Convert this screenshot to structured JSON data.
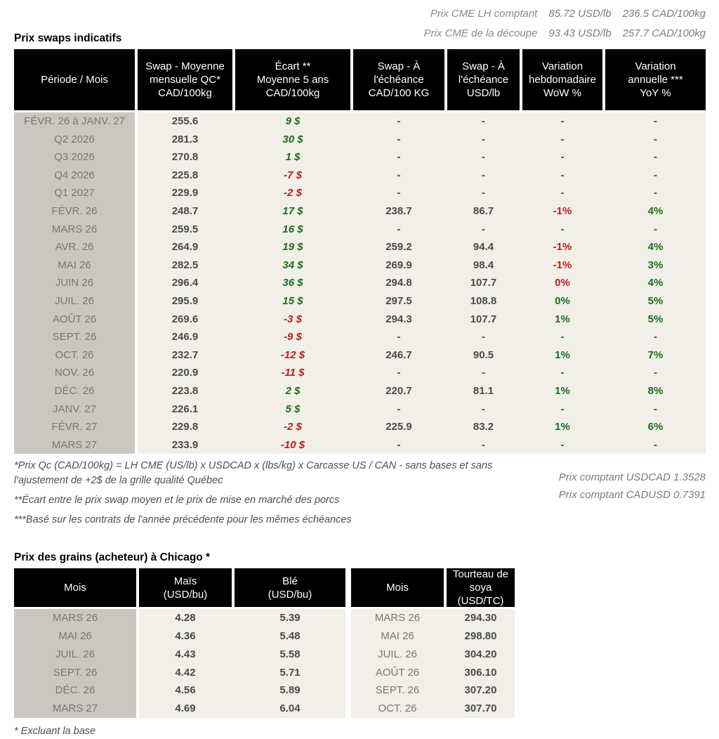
{
  "cme_header": {
    "lines": [
      {
        "label": "Prix CME LH comptant",
        "usd": "85.72 USD/lb",
        "cad": "236.5 CAD/100kg"
      },
      {
        "label": "Prix CME de la découpe",
        "usd": "93.43 USD/lb",
        "cad": "257.7 CAD/100kg"
      }
    ]
  },
  "colors": {
    "positive": "#1b6e1b",
    "negative": "#b5221c",
    "header_bg": "#000000",
    "body_bg": "#f1efe8",
    "period_bg": "#cac7c1"
  },
  "swaps_table": {
    "title": "Prix swaps indicatifs",
    "columns": [
      [
        "Période / Mois"
      ],
      [
        "Swap - Moyenne",
        "mensuelle QC*",
        "CAD/100kg"
      ],
      [
        "Écart **",
        "Moyenne 5 ans",
        "CAD/100kg"
      ],
      [
        "Swap - À",
        "l'échéance",
        "CAD/100 KG"
      ],
      [
        "Swap - À",
        "l'échéance",
        "USD/lb"
      ],
      [
        "Variation",
        "hebdomadaire",
        "WoW %"
      ],
      [
        "Variation",
        "annuelle ***",
        "YoY %"
      ]
    ],
    "rows": [
      [
        "FÉVR. 26 à  JANV. 27",
        [
          "255.6",
          "num"
        ],
        [
          "9 $",
          "pos"
        ],
        [
          "-",
          "num"
        ],
        [
          "-",
          "num"
        ],
        [
          "-",
          "num"
        ],
        [
          "-",
          "num"
        ]
      ],
      [
        "Q2 2026",
        [
          "281.3",
          "num"
        ],
        [
          "30 $",
          "pos"
        ],
        [
          "-",
          "num"
        ],
        [
          "-",
          "num"
        ],
        [
          "-",
          "num"
        ],
        [
          "-",
          "num"
        ]
      ],
      [
        "Q3 2026",
        [
          "270.8",
          "num"
        ],
        [
          "1 $",
          "pos"
        ],
        [
          "-",
          "num"
        ],
        [
          "-",
          "num"
        ],
        [
          "-",
          "num"
        ],
        [
          "-",
          "num"
        ]
      ],
      [
        "Q4 2026",
        [
          "225.8",
          "num"
        ],
        [
          "-7 $",
          "neg"
        ],
        [
          "-",
          "num"
        ],
        [
          "-",
          "num"
        ],
        [
          "-",
          "num"
        ],
        [
          "-",
          "num"
        ]
      ],
      [
        "Q1 2027",
        [
          "229.9",
          "num"
        ],
        [
          "-2 $",
          "neg"
        ],
        [
          "-",
          "num"
        ],
        [
          "-",
          "num"
        ],
        [
          "-",
          "num"
        ],
        [
          "-",
          "num"
        ]
      ],
      [
        "FÉVR. 26",
        [
          "248.7",
          "num"
        ],
        [
          "17 $",
          "pos"
        ],
        [
          "238.7",
          "num"
        ],
        [
          "86.7",
          "num"
        ],
        [
          "-1%",
          "neg"
        ],
        [
          "4%",
          "pos"
        ]
      ],
      [
        "MARS 26",
        [
          "259.5",
          "num"
        ],
        [
          "16 $",
          "pos"
        ],
        [
          "-",
          "num"
        ],
        [
          "-",
          "num"
        ],
        [
          "-",
          "pos"
        ],
        [
          "-",
          "pos"
        ]
      ],
      [
        "AVR. 26",
        [
          "264.9",
          "num"
        ],
        [
          "19 $",
          "pos"
        ],
        [
          "259.2",
          "num"
        ],
        [
          "94.4",
          "num"
        ],
        [
          "-1%",
          "neg"
        ],
        [
          "4%",
          "pos"
        ]
      ],
      [
        "MAI 26",
        [
          "282.5",
          "num"
        ],
        [
          "34 $",
          "pos"
        ],
        [
          "269.9",
          "num"
        ],
        [
          "98.4",
          "num"
        ],
        [
          "-1%",
          "neg"
        ],
        [
          "3%",
          "pos"
        ]
      ],
      [
        "JUIN 26",
        [
          "296.4",
          "num"
        ],
        [
          "36 $",
          "pos"
        ],
        [
          "294.8",
          "num"
        ],
        [
          "107.7",
          "num"
        ],
        [
          "0%",
          "neg"
        ],
        [
          "4%",
          "pos"
        ]
      ],
      [
        "JUIL. 26",
        [
          "295.9",
          "num"
        ],
        [
          "15 $",
          "pos"
        ],
        [
          "297.5",
          "num"
        ],
        [
          "108.8",
          "num"
        ],
        [
          "0%",
          "pos"
        ],
        [
          "5%",
          "pos"
        ]
      ],
      [
        "AOÛT 26",
        [
          "269.6",
          "num"
        ],
        [
          "-3 $",
          "neg"
        ],
        [
          "294.3",
          "num"
        ],
        [
          "107.7",
          "num"
        ],
        [
          "1%",
          "pos"
        ],
        [
          "5%",
          "pos"
        ]
      ],
      [
        "SEPT. 26",
        [
          "246.9",
          "num"
        ],
        [
          "-9 $",
          "neg"
        ],
        [
          "-",
          "num"
        ],
        [
          "-",
          "num"
        ],
        [
          "-",
          "pos"
        ],
        [
          "-",
          "pos"
        ]
      ],
      [
        "OCT. 26",
        [
          "232.7",
          "num"
        ],
        [
          "-12 $",
          "neg"
        ],
        [
          "246.7",
          "num"
        ],
        [
          "90.5",
          "num"
        ],
        [
          "1%",
          "pos"
        ],
        [
          "7%",
          "pos"
        ]
      ],
      [
        "NOV. 26",
        [
          "220.9",
          "num"
        ],
        [
          "-11 $",
          "neg"
        ],
        [
          "-",
          "num"
        ],
        [
          "-",
          "num"
        ],
        [
          "-",
          "pos"
        ],
        [
          "-",
          "pos"
        ]
      ],
      [
        "DÉC. 26",
        [
          "223.8",
          "num"
        ],
        [
          "2 $",
          "pos"
        ],
        [
          "220.7",
          "num"
        ],
        [
          "81.1",
          "num"
        ],
        [
          "1%",
          "pos"
        ],
        [
          "8%",
          "pos"
        ]
      ],
      [
        "JANV. 27",
        [
          "226.1",
          "num"
        ],
        [
          "5 $",
          "pos"
        ],
        [
          "-",
          "num"
        ],
        [
          "-",
          "num"
        ],
        [
          "-",
          "pos"
        ],
        [
          "-",
          "pos"
        ]
      ],
      [
        "FÉVR. 27",
        [
          "229.8",
          "num"
        ],
        [
          "-2 $",
          "neg"
        ],
        [
          "225.9",
          "num"
        ],
        [
          "83.2",
          "num"
        ],
        [
          "1%",
          "pos"
        ],
        [
          "6%",
          "pos"
        ]
      ],
      [
        "MARS 27",
        [
          "233.9",
          "num"
        ],
        [
          "-10 $",
          "neg"
        ],
        [
          "-",
          "num"
        ],
        [
          "-",
          "num"
        ],
        [
          "-",
          "pos"
        ],
        [
          "-",
          "pos"
        ]
      ]
    ]
  },
  "footnotes": {
    "fn1": "*Prix Qc (CAD/100kg) = LH CME (US/lb) x USDCAD x (lbs/kg) x Carcasse US / CAN - sans bases et sans l'ajustement de +2$ de la grille qualité Québec",
    "fn2": "**Écart entre le prix swap moyen et le prix de mise en marché des porcs",
    "fn3": "***Basé sur les contrats de l'année précédente pour les mêmes échéances",
    "spot_usdcad": "Prix comptant USDCAD 1.3528",
    "spot_cadusd": "Prix comptant CADUSD 0.7391"
  },
  "grains_table": {
    "title": "Prix des grains (acheteur) à Chicago *",
    "columns": [
      [
        "Mois"
      ],
      [
        "Maïs",
        "(USD/bu)"
      ],
      [
        "Blé",
        "(USD/bu)"
      ],
      [
        "Mois"
      ],
      [
        "Tourteau de",
        "soya",
        "(USD/TC)"
      ]
    ],
    "rows": [
      [
        "MARS 26",
        [
          "4.28",
          "num"
        ],
        [
          "5.39",
          "num"
        ],
        "MARS 26",
        [
          "294.30",
          "num"
        ]
      ],
      [
        "MAI 26",
        [
          "4.36",
          "num"
        ],
        [
          "5.48",
          "num"
        ],
        "MAI 26",
        [
          "298.80",
          "num"
        ]
      ],
      [
        "JUIL. 26",
        [
          "4.43",
          "num"
        ],
        [
          "5.58",
          "num"
        ],
        "JUIL. 26",
        [
          "304.20",
          "num"
        ]
      ],
      [
        "SEPT. 26",
        [
          "4.42",
          "num"
        ],
        [
          "5.71",
          "num"
        ],
        "AOÛT 26",
        [
          "306.10",
          "num"
        ]
      ],
      [
        "DÉC. 26",
        [
          "4.56",
          "num"
        ],
        [
          "5.89",
          "num"
        ],
        "SEPT. 26",
        [
          "307.20",
          "num"
        ]
      ],
      [
        "MARS 27",
        [
          "4.69",
          "num"
        ],
        [
          "6.04",
          "num"
        ],
        "OCT. 26",
        [
          "307.70",
          "num"
        ]
      ]
    ],
    "footer": "* Excluant la base"
  }
}
